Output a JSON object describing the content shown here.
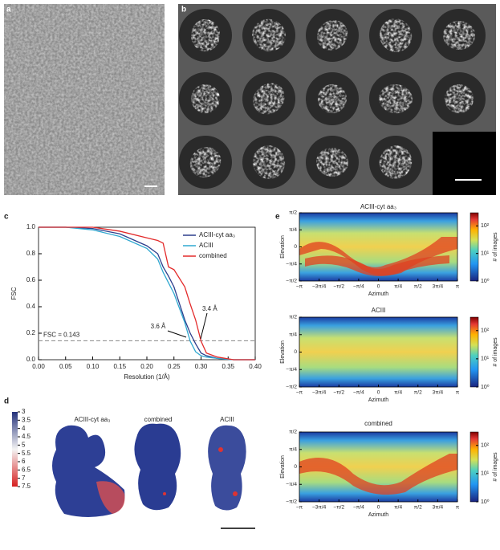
{
  "panel_labels": [
    "a",
    "b",
    "c",
    "d",
    "e"
  ],
  "chart_data": [
    {
      "type": "line",
      "xlabel": "Resolution (1/Å)",
      "ylabel": "FSC",
      "x": [
        0,
        0.05,
        0.1,
        0.15,
        0.2,
        0.22,
        0.23,
        0.24,
        0.25,
        0.27,
        0.28,
        0.29,
        0.3,
        0.31,
        0.33,
        0.36,
        0.4
      ],
      "series": [
        {
          "name": "ACIII-cyt aa₃",
          "color": "#2c3e8c",
          "values": [
            1,
            1,
            0.99,
            0.95,
            0.86,
            0.8,
            0.7,
            0.63,
            0.55,
            0.3,
            0.2,
            0.12,
            0.05,
            0.03,
            0.01,
            0,
            0
          ]
        },
        {
          "name": "ACIII",
          "color": "#2fa8d0",
          "values": [
            1,
            1,
            0.98,
            0.93,
            0.84,
            0.76,
            0.66,
            0.58,
            0.5,
            0.28,
            0.14,
            0.06,
            0.03,
            0.02,
            0.01,
            0,
            0
          ]
        },
        {
          "name": "combined",
          "color": "#e32b2b",
          "values": [
            1,
            1,
            1,
            0.97,
            0.92,
            0.9,
            0.88,
            0.7,
            0.68,
            0.55,
            0.42,
            0.3,
            0.14,
            0.05,
            0.02,
            0,
            0
          ]
        }
      ],
      "xlim": [
        0,
        0.4
      ],
      "ylim": [
        0,
        1.0
      ],
      "xticks": [
        {
          "value": 0,
          "label": "0.00"
        },
        {
          "value": 0.05,
          "label": "0.05"
        },
        {
          "value": 0.1,
          "label": "0.10"
        },
        {
          "value": 0.15,
          "label": "0.15"
        },
        {
          "value": 0.2,
          "label": "0.20"
        },
        {
          "value": 0.25,
          "label": "0.25"
        },
        {
          "value": 0.3,
          "label": "0.30"
        },
        {
          "value": 0.35,
          "label": "0.35"
        },
        {
          "value": 0.4,
          "label": "0.40"
        }
      ],
      "yticks": [
        {
          "value": 0,
          "label": "0.0"
        },
        {
          "value": 0.2,
          "label": "0.2"
        },
        {
          "value": 0.4,
          "label": "0.4"
        },
        {
          "value": 0.6,
          "label": "0.6"
        },
        {
          "value": 0.8,
          "label": "0.8"
        },
        {
          "value": 1,
          "label": "1.0"
        }
      ],
      "threshold": {
        "value": 0.143,
        "label": "FSC = 0.143"
      },
      "annotations": [
        "3.6 Å",
        "3.4 Å"
      ],
      "legend": "upper right"
    },
    {
      "type": "heatmap",
      "title": "ACIII-cyt aa₃",
      "xlabel": "Azimuth",
      "ylabel": "Elevation",
      "colorbar_label": "# of images"
    },
    {
      "type": "heatmap",
      "title": "ACIII",
      "xlabel": "Azimuth",
      "ylabel": "Elevation",
      "colorbar_label": "# of images"
    },
    {
      "type": "heatmap",
      "title": "combined",
      "xlabel": "Azimuth",
      "ylabel": "Elevation",
      "colorbar_label": "# of images"
    }
  ],
  "heatmap_axes": {
    "xlim": [
      -3.1416,
      3.1416
    ],
    "ylim": [
      -1.5708,
      1.5708
    ],
    "xticks": [
      {
        "value": -3.1416,
        "label": "−π"
      },
      {
        "value": -2.3562,
        "label": "−3π/4"
      },
      {
        "value": -1.5708,
        "label": "−π/2"
      },
      {
        "value": -0.7854,
        "label": "−π/4"
      },
      0,
      {
        "value": 0.7854,
        "label": "π/4"
      },
      {
        "value": 1.5708,
        "label": "π/2"
      },
      {
        "value": 2.3562,
        "label": "3π/4"
      },
      {
        "value": 3.1416,
        "label": "π"
      }
    ],
    "yticks": [
      {
        "value": -1.5708,
        "label": "−π/2"
      },
      {
        "value": -0.7854,
        "label": "−π/4"
      },
      0,
      {
        "value": 0.7854,
        "label": "π/4"
      },
      {
        "value": 1.5708,
        "label": "π/2"
      }
    ],
    "clim": [
      1,
      300
    ],
    "colorbar_scale": "log",
    "cticks": [
      {
        "value": 1,
        "label": "10⁰"
      },
      {
        "value": 10,
        "label": "10¹"
      },
      {
        "value": 100,
        "label": "10²"
      }
    ]
  },
  "panel_d": {
    "titles": [
      "ACIII-cyt aa₃",
      "combined",
      "ACIII"
    ],
    "colorbar": {
      "lim": [
        3,
        7.5
      ],
      "ticks": [
        3,
        3.5,
        4,
        4.5,
        5,
        5.5,
        6,
        6.5,
        7,
        7.5
      ]
    }
  }
}
